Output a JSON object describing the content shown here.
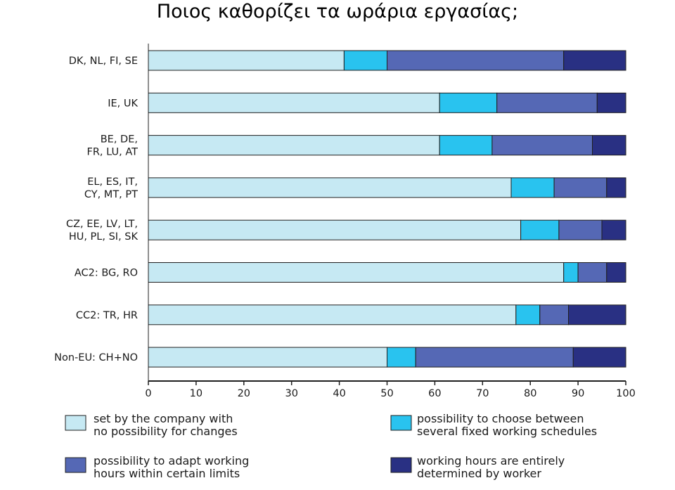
{
  "title": "Ποιος καθορίζει τα ωράρια εργασίας;",
  "colors": {
    "s0": "#c6e9f3",
    "s1": "#29c3ef",
    "s2": "#5568b5",
    "s3": "#293083",
    "stroke": "#1f1f1f",
    "axis": "#1f1f1f"
  },
  "chart_data": {
    "type": "bar",
    "orientation": "horizontal",
    "stacked": true,
    "title": "",
    "xlabel": "",
    "ylabel": "",
    "xlim": [
      0,
      100
    ],
    "xticks": [
      0,
      10,
      20,
      30,
      40,
      50,
      60,
      70,
      80,
      90,
      100
    ],
    "grid": false,
    "legend": "bottom",
    "categories": [
      [
        "DK, NL, FI, SE"
      ],
      [
        "IE, UK"
      ],
      [
        "BE, DE,",
        "FR, LU, AT"
      ],
      [
        "EL, ES, IT,",
        "CY, MT, PT"
      ],
      [
        "CZ, EE, LV, LT,",
        "HU, PL, SI, SK"
      ],
      [
        "AC2: BG, RO"
      ],
      [
        "CC2: TR, HR"
      ],
      [
        "Non-EU: CH+NO"
      ]
    ],
    "series": [
      {
        "name": [
          "set by the company with",
          "no possibility for changes"
        ],
        "color": "#c6e9f3",
        "values": [
          41,
          61,
          61,
          76,
          78,
          87,
          77,
          50
        ]
      },
      {
        "name": [
          "possibility to choose between",
          "several fixed working schedules"
        ],
        "color": "#29c3ef",
        "values": [
          9,
          12,
          11,
          9,
          8,
          3,
          5,
          6
        ]
      },
      {
        "name": [
          "possibility to adapt working",
          "hours within certain limits"
        ],
        "color": "#5568b5",
        "values": [
          37,
          21,
          21,
          11,
          9,
          6,
          6,
          33
        ]
      },
      {
        "name": [
          "working hours are entirely",
          "determined by worker"
        ],
        "color": "#293083",
        "values": [
          13,
          6,
          7,
          4,
          5,
          4,
          12,
          11
        ]
      }
    ]
  }
}
